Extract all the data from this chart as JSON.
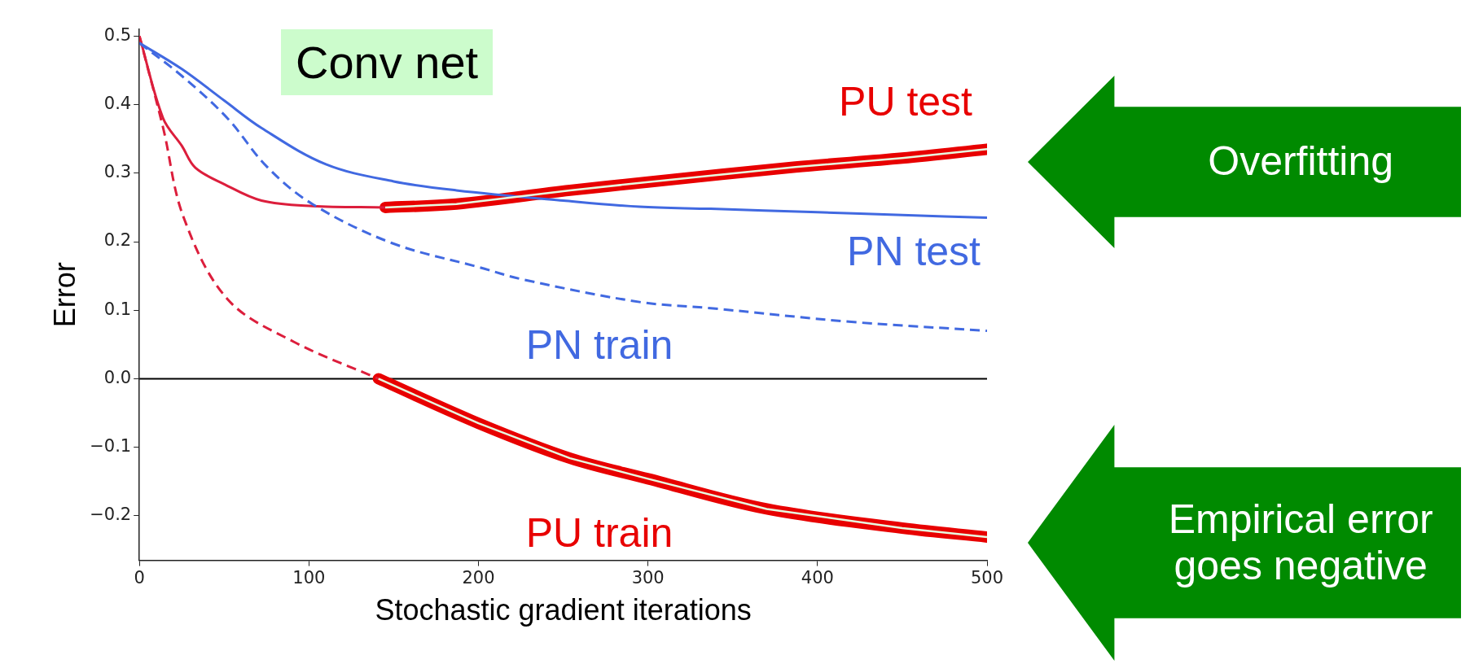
{
  "chart_data": {
    "type": "line",
    "xlabel": "Stochastic gradient iterations",
    "ylabel": "Error",
    "xlim": [
      0,
      500
    ],
    "xticks": [
      0,
      100,
      200,
      300,
      400,
      500
    ],
    "ylim": [
      -0.265,
      0.51
    ],
    "yticks": [
      {
        "value": -0.2,
        "label": "−0.2"
      },
      {
        "value": -0.1,
        "label": "−0.1"
      },
      {
        "value": 0,
        "label": "0.0"
      },
      {
        "value": 0.1,
        "label": "0.1"
      },
      {
        "value": 0.2,
        "label": "0.2"
      },
      {
        "value": 0.3,
        "label": "0.3"
      },
      {
        "value": 0.4,
        "label": "0.4"
      },
      {
        "value": 0.5,
        "label": "0.5"
      }
    ],
    "grid": false,
    "legend": false,
    "ref_lines": [
      {
        "axis": "y",
        "value": 0,
        "color": "#000000"
      }
    ],
    "annotations": [
      "Conv net",
      "Overfitting",
      "Empirical error goes negative"
    ],
    "series": [
      {
        "name": "PN test",
        "color": "#4169e1",
        "x": [
          0,
          25,
          50,
          72,
          110,
          150,
          187,
          250,
          295,
          337,
          400,
          450,
          500
        ],
        "values": [
          0.49,
          0.452,
          0.406,
          0.366,
          0.313,
          0.288,
          0.275,
          0.26,
          0.251,
          0.248,
          0.243,
          0.239,
          0.235
        ]
      },
      {
        "name": "PN train",
        "color": "#4169e1",
        "line_style": "dashed",
        "x": [
          0,
          25,
          52,
          75,
          102,
          149,
          200,
          226,
          295,
          337,
          420,
          500
        ],
        "values": [
          0.49,
          0.442,
          0.38,
          0.31,
          0.255,
          0.198,
          0.163,
          0.145,
          0.112,
          0.103,
          0.083,
          0.07
        ]
      },
      {
        "color": "#dc1e3c",
        "x": [
          0,
          14,
          25,
          33,
          50,
          72,
          102,
          145
        ],
        "values": [
          0.5,
          0.38,
          0.34,
          0.308,
          0.284,
          0.26,
          0.252,
          0.25
        ]
      },
      {
        "name": "PU test",
        "color": "#e80000",
        "line_style": "solid",
        "x": [
          145,
          187,
          254,
          300,
          387,
          450,
          500
        ],
        "values": [
          0.25,
          0.255,
          0.275,
          0.287,
          0.309,
          0.322,
          0.335
        ]
      },
      {
        "color": "#dc1e3c",
        "line_style": "dashed",
        "x": [
          0,
          14,
          26,
          52,
          91,
          141
        ],
        "values": [
          0.5,
          0.366,
          0.236,
          0.116,
          0.054,
          0
        ]
      },
      {
        "name": "PU train",
        "color": "#e80000",
        "line_style": "solid",
        "x": [
          141,
          200,
          254,
          300,
          370,
          450,
          500
        ],
        "values": [
          0,
          -0.065,
          -0.116,
          -0.146,
          -0.19,
          -0.218,
          -0.231
        ]
      }
    ]
  }
}
